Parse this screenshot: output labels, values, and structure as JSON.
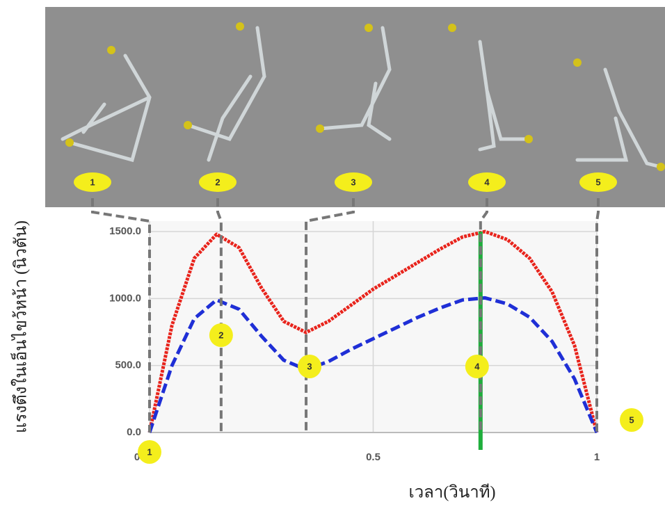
{
  "chart_data": {
    "type": "line",
    "y_label": "แรงตึงในเอ็นไขว้หน้า (นิวตัน)",
    "x_label": "เวลา(วินาที)",
    "x": [
      0,
      0.05,
      0.1,
      0.15,
      0.2,
      0.25,
      0.3,
      0.35,
      0.4,
      0.45,
      0.5,
      0.55,
      0.6,
      0.65,
      0.7,
      0.75,
      0.8,
      0.85,
      0.9,
      0.95,
      1
    ],
    "series": [
      {
        "color": "#e8241c",
        "style": "solid",
        "values": [
          0,
          800,
          1300,
          1480,
          1380,
          1080,
          830,
          747,
          830,
          950,
          1070,
          1170,
          1270,
          1370,
          1460,
          1500,
          1440,
          1300,
          1050,
          650,
          0
        ]
      },
      {
        "color": "#1f2fd6",
        "style": "dashed",
        "values": [
          0,
          500,
          850,
          990,
          920,
          720,
          540,
          470,
          530,
          620,
          700,
          780,
          860,
          930,
          990,
          1005,
          960,
          860,
          680,
          400,
          0
        ]
      }
    ],
    "xlim": [
      0,
      1
    ],
    "xticks": [
      0,
      0.5,
      1
    ],
    "ylim": [
      0,
      1500
    ],
    "yticks": [
      {
        "value": 0,
        "label": "0.0"
      },
      {
        "value": 500,
        "label": "500.0"
      },
      {
        "value": 1000,
        "label": "1000.0"
      },
      {
        "value": 1500,
        "label": "1500.0"
      }
    ],
    "grid": true,
    "marker_x": 0.74,
    "marker_color": "#1fae3c",
    "phases": [
      {
        "label": "1",
        "x": 0
      },
      {
        "label": "2",
        "x": 0.16
      },
      {
        "label": "3",
        "x": 0.35
      },
      {
        "label": "4",
        "x": 0.74
      },
      {
        "label": "5",
        "x": 1
      }
    ]
  }
}
